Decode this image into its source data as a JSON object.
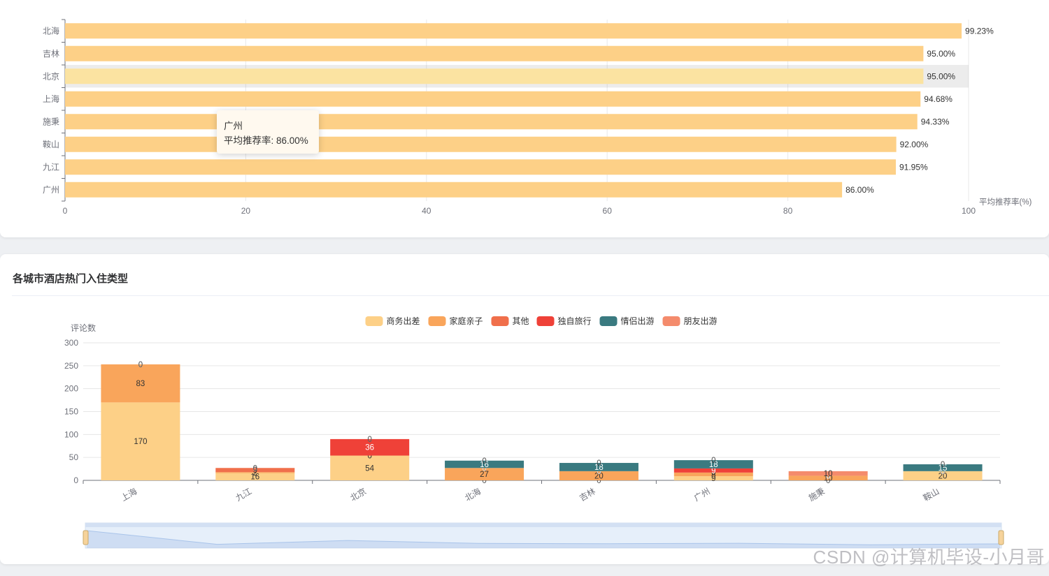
{
  "recommend_chart": {
    "chart_data": {
      "type": "bar",
      "orientation": "horizontal",
      "categories": [
        "北海",
        "吉林",
        "北京",
        "上海",
        "施秉",
        "鞍山",
        "九江",
        "广州"
      ],
      "values": [
        99.23,
        95.0,
        95.0,
        94.68,
        94.33,
        92.0,
        91.95,
        86.0
      ],
      "value_labels": [
        "99.23%",
        "95.00%",
        "95.00%",
        "94.68%",
        "94.33%",
        "92.00%",
        "91.95%",
        "86.00%"
      ],
      "xlabel": "平均推荐率(%)",
      "xlim": [
        0,
        100
      ],
      "xticks": [
        "0",
        "20",
        "40",
        "60",
        "80",
        "100"
      ],
      "bar_color": "#fdd087",
      "highlight_color": "#fbe3a1",
      "highlighted_category": "北京"
    },
    "tooltip": {
      "title": "广州",
      "label": "平均推荐率: 86.00%"
    }
  },
  "stay_type_card": {
    "title": "各城市酒店热门入住类型",
    "chart_data": {
      "type": "bar",
      "stacked": true,
      "categories": [
        "上海",
        "九江",
        "北京",
        "北海",
        "吉林",
        "广州",
        "施秉",
        "鞍山"
      ],
      "series": [
        {
          "name": "商务出差",
          "color": "#fdd087",
          "values": [
            170,
            16,
            54,
            0,
            0,
            9,
            0,
            20
          ]
        },
        {
          "name": "家庭亲子",
          "color": "#f9a55b",
          "values": [
            83,
            2,
            0,
            27,
            20,
            8,
            10,
            0
          ]
        },
        {
          "name": "其他",
          "color": "#f06f4b",
          "values": [
            0,
            9,
            0,
            0,
            0,
            0,
            0,
            0
          ]
        },
        {
          "name": "独自旅行",
          "color": "#ef4138",
          "values": [
            0,
            0,
            36,
            0,
            0,
            9,
            0,
            0
          ]
        },
        {
          "name": "情侣出游",
          "color": "#3a7a80",
          "values": [
            0,
            0,
            0,
            16,
            18,
            18,
            0,
            15
          ]
        },
        {
          "name": "朋友出游",
          "color": "#f48b6c",
          "values": [
            0,
            0,
            0,
            0,
            0,
            0,
            10,
            0
          ]
        }
      ],
      "ylabel": "评论数",
      "ylim": [
        0,
        300
      ],
      "yticks": [
        "0",
        "50",
        "100",
        "150",
        "200",
        "250",
        "300"
      ],
      "legend_position": "top-center",
      "grid": true,
      "datazoom_slider": true
    }
  },
  "watermark": "CSDN @计算机毕设-小月哥"
}
